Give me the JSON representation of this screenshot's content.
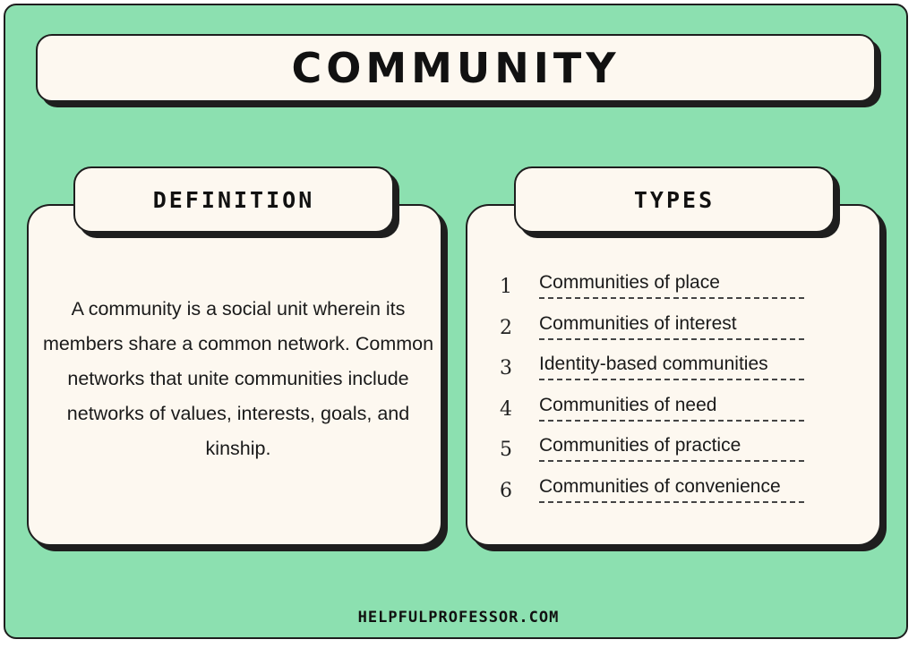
{
  "title": "COMMUNITY",
  "definition": {
    "heading": "DEFINITION",
    "text": "A community is a social unit wherein its members share a common network. Common networks that unite communities include networks of values, interests, goals, and kinship."
  },
  "types": {
    "heading": "TYPES",
    "items": [
      {
        "number": "1",
        "label": "Communities of place"
      },
      {
        "number": "2",
        "label": "Communities of interest"
      },
      {
        "number": "3",
        "label": "Identity-based communities"
      },
      {
        "number": "4",
        "label": "Communities of need"
      },
      {
        "number": "5",
        "label": "Communities of practice"
      },
      {
        "number": "6",
        "label": "Communities of convenience"
      }
    ]
  },
  "footer": "HELPFULPROFESSOR.COM",
  "colors": {
    "background": "#8ce0b0",
    "card": "#fdf8f0",
    "outline": "#1e1e1e"
  }
}
